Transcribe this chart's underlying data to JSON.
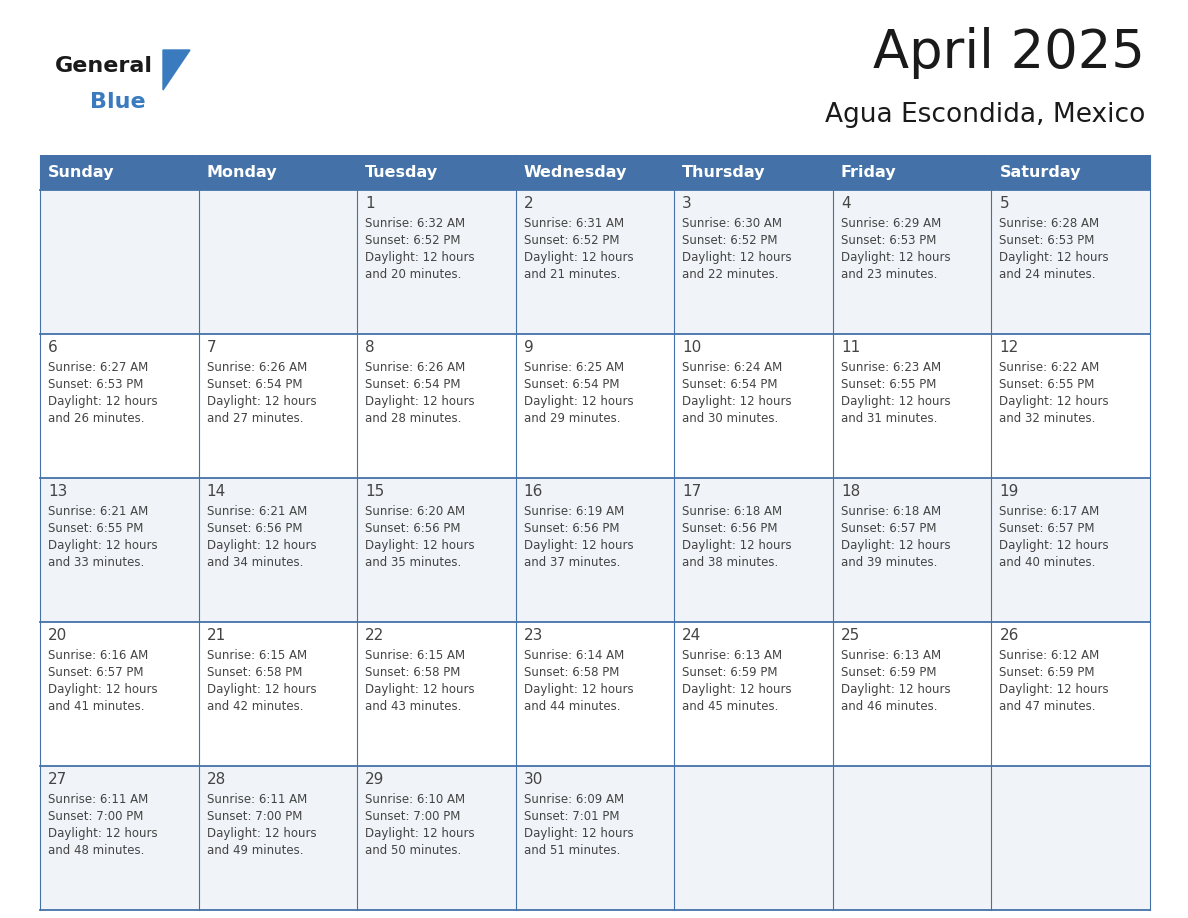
{
  "title": "April 2025",
  "subtitle": "Agua Escondida, Mexico",
  "header_color": "#4472a8",
  "header_text_color": "#ffffff",
  "bg_color": "#ffffff",
  "row0_color": "#f0f4f8",
  "row1_color": "#ffffff",
  "text_color": "#444444",
  "line_color": "#4472a8",
  "logo_black": "#1a1a1a",
  "logo_blue": "#3a7bbf",
  "days_of_week": [
    "Sunday",
    "Monday",
    "Tuesday",
    "Wednesday",
    "Thursday",
    "Friday",
    "Saturday"
  ],
  "weeks": [
    [
      {
        "day": "",
        "sunrise": "",
        "sunset": "",
        "daylight": ""
      },
      {
        "day": "",
        "sunrise": "",
        "sunset": "",
        "daylight": ""
      },
      {
        "day": "1",
        "sunrise": "Sunrise: 6:32 AM",
        "sunset": "Sunset: 6:52 PM",
        "daylight": "Daylight: 12 hours\nand 20 minutes."
      },
      {
        "day": "2",
        "sunrise": "Sunrise: 6:31 AM",
        "sunset": "Sunset: 6:52 PM",
        "daylight": "Daylight: 12 hours\nand 21 minutes."
      },
      {
        "day": "3",
        "sunrise": "Sunrise: 6:30 AM",
        "sunset": "Sunset: 6:52 PM",
        "daylight": "Daylight: 12 hours\nand 22 minutes."
      },
      {
        "day": "4",
        "sunrise": "Sunrise: 6:29 AM",
        "sunset": "Sunset: 6:53 PM",
        "daylight": "Daylight: 12 hours\nand 23 minutes."
      },
      {
        "day": "5",
        "sunrise": "Sunrise: 6:28 AM",
        "sunset": "Sunset: 6:53 PM",
        "daylight": "Daylight: 12 hours\nand 24 minutes."
      }
    ],
    [
      {
        "day": "6",
        "sunrise": "Sunrise: 6:27 AM",
        "sunset": "Sunset: 6:53 PM",
        "daylight": "Daylight: 12 hours\nand 26 minutes."
      },
      {
        "day": "7",
        "sunrise": "Sunrise: 6:26 AM",
        "sunset": "Sunset: 6:54 PM",
        "daylight": "Daylight: 12 hours\nand 27 minutes."
      },
      {
        "day": "8",
        "sunrise": "Sunrise: 6:26 AM",
        "sunset": "Sunset: 6:54 PM",
        "daylight": "Daylight: 12 hours\nand 28 minutes."
      },
      {
        "day": "9",
        "sunrise": "Sunrise: 6:25 AM",
        "sunset": "Sunset: 6:54 PM",
        "daylight": "Daylight: 12 hours\nand 29 minutes."
      },
      {
        "day": "10",
        "sunrise": "Sunrise: 6:24 AM",
        "sunset": "Sunset: 6:54 PM",
        "daylight": "Daylight: 12 hours\nand 30 minutes."
      },
      {
        "day": "11",
        "sunrise": "Sunrise: 6:23 AM",
        "sunset": "Sunset: 6:55 PM",
        "daylight": "Daylight: 12 hours\nand 31 minutes."
      },
      {
        "day": "12",
        "sunrise": "Sunrise: 6:22 AM",
        "sunset": "Sunset: 6:55 PM",
        "daylight": "Daylight: 12 hours\nand 32 minutes."
      }
    ],
    [
      {
        "day": "13",
        "sunrise": "Sunrise: 6:21 AM",
        "sunset": "Sunset: 6:55 PM",
        "daylight": "Daylight: 12 hours\nand 33 minutes."
      },
      {
        "day": "14",
        "sunrise": "Sunrise: 6:21 AM",
        "sunset": "Sunset: 6:56 PM",
        "daylight": "Daylight: 12 hours\nand 34 minutes."
      },
      {
        "day": "15",
        "sunrise": "Sunrise: 6:20 AM",
        "sunset": "Sunset: 6:56 PM",
        "daylight": "Daylight: 12 hours\nand 35 minutes."
      },
      {
        "day": "16",
        "sunrise": "Sunrise: 6:19 AM",
        "sunset": "Sunset: 6:56 PM",
        "daylight": "Daylight: 12 hours\nand 37 minutes."
      },
      {
        "day": "17",
        "sunrise": "Sunrise: 6:18 AM",
        "sunset": "Sunset: 6:56 PM",
        "daylight": "Daylight: 12 hours\nand 38 minutes."
      },
      {
        "day": "18",
        "sunrise": "Sunrise: 6:18 AM",
        "sunset": "Sunset: 6:57 PM",
        "daylight": "Daylight: 12 hours\nand 39 minutes."
      },
      {
        "day": "19",
        "sunrise": "Sunrise: 6:17 AM",
        "sunset": "Sunset: 6:57 PM",
        "daylight": "Daylight: 12 hours\nand 40 minutes."
      }
    ],
    [
      {
        "day": "20",
        "sunrise": "Sunrise: 6:16 AM",
        "sunset": "Sunset: 6:57 PM",
        "daylight": "Daylight: 12 hours\nand 41 minutes."
      },
      {
        "day": "21",
        "sunrise": "Sunrise: 6:15 AM",
        "sunset": "Sunset: 6:58 PM",
        "daylight": "Daylight: 12 hours\nand 42 minutes."
      },
      {
        "day": "22",
        "sunrise": "Sunrise: 6:15 AM",
        "sunset": "Sunset: 6:58 PM",
        "daylight": "Daylight: 12 hours\nand 43 minutes."
      },
      {
        "day": "23",
        "sunrise": "Sunrise: 6:14 AM",
        "sunset": "Sunset: 6:58 PM",
        "daylight": "Daylight: 12 hours\nand 44 minutes."
      },
      {
        "day": "24",
        "sunrise": "Sunrise: 6:13 AM",
        "sunset": "Sunset: 6:59 PM",
        "daylight": "Daylight: 12 hours\nand 45 minutes."
      },
      {
        "day": "25",
        "sunrise": "Sunrise: 6:13 AM",
        "sunset": "Sunset: 6:59 PM",
        "daylight": "Daylight: 12 hours\nand 46 minutes."
      },
      {
        "day": "26",
        "sunrise": "Sunrise: 6:12 AM",
        "sunset": "Sunset: 6:59 PM",
        "daylight": "Daylight: 12 hours\nand 47 minutes."
      }
    ],
    [
      {
        "day": "27",
        "sunrise": "Sunrise: 6:11 AM",
        "sunset": "Sunset: 7:00 PM",
        "daylight": "Daylight: 12 hours\nand 48 minutes."
      },
      {
        "day": "28",
        "sunrise": "Sunrise: 6:11 AM",
        "sunset": "Sunset: 7:00 PM",
        "daylight": "Daylight: 12 hours\nand 49 minutes."
      },
      {
        "day": "29",
        "sunrise": "Sunrise: 6:10 AM",
        "sunset": "Sunset: 7:00 PM",
        "daylight": "Daylight: 12 hours\nand 50 minutes."
      },
      {
        "day": "30",
        "sunrise": "Sunrise: 6:09 AM",
        "sunset": "Sunset: 7:01 PM",
        "daylight": "Daylight: 12 hours\nand 51 minutes."
      },
      {
        "day": "",
        "sunrise": "",
        "sunset": "",
        "daylight": ""
      },
      {
        "day": "",
        "sunrise": "",
        "sunset": "",
        "daylight": ""
      },
      {
        "day": "",
        "sunrise": "",
        "sunset": "",
        "daylight": ""
      }
    ]
  ]
}
